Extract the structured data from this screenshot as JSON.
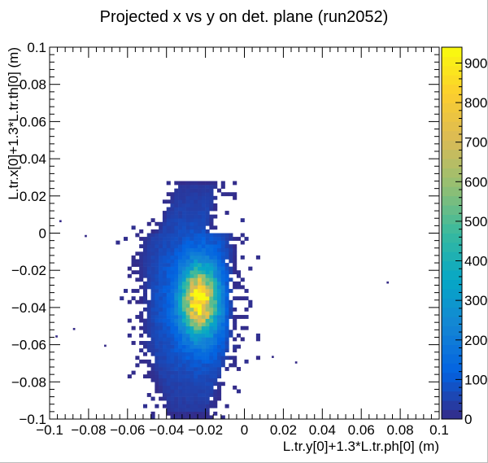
{
  "chart_data": {
    "type": "heatmap",
    "title": "Projected x vs y on det. plane (run2052)",
    "xlabel": "L.tr.y[0]+1.3*L.tr.ph[0] (m)",
    "ylabel": "L.tr.x[0]+1.3*L.tr.th[0] (m)",
    "xlim": [
      -0.1,
      0.1
    ],
    "ylim": [
      -0.1,
      0.1
    ],
    "x_ticks": [
      "−0.1",
      "−0.08",
      "−0.06",
      "−0.04",
      "−0.02",
      "0",
      "0.02",
      "0.04",
      "0.06",
      "0.08",
      "0.1"
    ],
    "y_ticks": [
      "−0.1",
      "−0.08",
      "−0.06",
      "−0.04",
      "−0.02",
      "0",
      "0.02",
      "0.04",
      "0.06",
      "0.08",
      "0.1"
    ],
    "colorbar": {
      "min": 0,
      "max": 940,
      "ticks": [
        "0",
        "100",
        "200",
        "300",
        "400",
        "500",
        "600",
        "700",
        "800",
        "900"
      ],
      "palette": "kBird"
    },
    "distribution": {
      "peak": {
        "x": -0.023,
        "y": -0.036,
        "count": 940
      },
      "core_spread": {
        "sx": 0.006,
        "sy": 0.012
      },
      "x_extent": [
        -0.058,
        -0.002
      ],
      "y_extent": [
        -0.096,
        0.026
      ]
    }
  },
  "colors": {
    "frame": "#000000",
    "palette": [
      "#352a87",
      "#0363e1",
      "#1485d4",
      "#06a7c6",
      "#38b99e",
      "#92bf73",
      "#d9ba56",
      "#fcce2e",
      "#f9fb0e"
    ]
  }
}
